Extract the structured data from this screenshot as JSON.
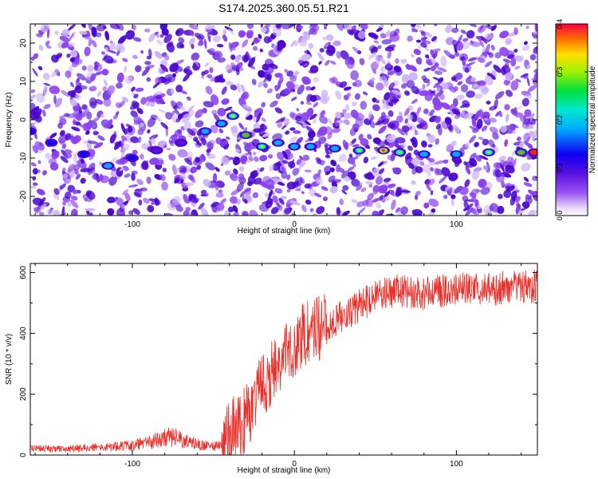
{
  "title": "S174.2025.360.05.51.R21",
  "colors": {
    "axis": "#000000",
    "snr_line": "#e8302a",
    "spectrogram_background": "#ffffff",
    "speckle_dark": "#4a06cf",
    "speckle_mid": "#8a3ff0",
    "speckle_light": "#cdb3f8",
    "signal_core": "#ff2000"
  },
  "chart_data": [
    {
      "type": "heatmap",
      "name": "spectrogram",
      "xlabel": "Height of straight line (km)",
      "ylabel": "Frequency (Hz)",
      "xlim": [
        -163,
        150
      ],
      "ylim": [
        -25,
        25
      ],
      "x_ticks": [
        -100,
        0,
        100
      ],
      "x_tick_labels": [
        "-100",
        "0",
        "100"
      ],
      "y_ticks": [
        -20,
        -10,
        0,
        10,
        20
      ],
      "y_tick_labels": [
        "-20",
        "-10",
        "0",
        "10",
        "20"
      ],
      "signal_trace": {
        "x": [
          -163,
          -150,
          -130,
          -115,
          -100,
          -85,
          -70,
          -55,
          -45,
          -38,
          -30,
          -20,
          -10,
          0,
          10,
          25,
          40,
          55,
          65,
          80,
          100,
          120,
          140,
          148
        ],
        "y": [
          -3,
          -6,
          -9,
          -12,
          -10,
          -8,
          -6,
          -3,
          -1,
          1,
          -4,
          -7,
          -6,
          -7,
          -7,
          -7.5,
          -8,
          -8,
          -8.5,
          -9,
          -9,
          -8.5,
          -8.5,
          -8.5
        ],
        "peak_amplitude": [
          0.12,
          0.1,
          0.12,
          0.15,
          0.1,
          0.08,
          0.08,
          0.15,
          0.18,
          0.22,
          0.25,
          0.2,
          0.15,
          0.15,
          0.15,
          0.18,
          0.2,
          0.3,
          0.22,
          0.18,
          0.18,
          0.2,
          0.25,
          0.4
        ]
      },
      "colorbar": {
        "label": "Normalized spectral amplitude",
        "range": [
          0.0,
          0.4
        ],
        "ticks": [
          0.0,
          0.1,
          0.2,
          0.3,
          0.4
        ],
        "tick_labels": [
          "0.0",
          "0.1",
          "0.2",
          "0.3",
          "0.4"
        ],
        "colormap": "rainbow (white → purple → blue → cyan → green → yellow → red)"
      }
    },
    {
      "type": "line",
      "name": "snr",
      "xlabel": "Height of straight line (km)",
      "ylabel": "SNR (10 * v/v)",
      "xlim": [
        -163,
        150
      ],
      "ylim": [
        0,
        630
      ],
      "x_ticks": [
        -100,
        0,
        100
      ],
      "x_tick_labels": [
        "-100",
        "0",
        "100"
      ],
      "y_ticks": [
        0,
        200,
        400,
        600
      ],
      "y_tick_labels": [
        "0",
        "200",
        "400",
        "600"
      ],
      "series": [
        {
          "name": "SNR",
          "x": [
            -163,
            -140,
            -120,
            -100,
            -90,
            -80,
            -75,
            -70,
            -60,
            -50,
            -45,
            -42,
            -40,
            -35,
            -30,
            -25,
            -20,
            -15,
            -10,
            -5,
            0,
            5,
            10,
            15,
            20,
            25,
            30,
            40,
            50,
            60,
            70,
            80,
            90,
            100,
            110,
            120,
            130,
            140,
            150
          ],
          "y": [
            22,
            20,
            25,
            32,
            42,
            55,
            62,
            50,
            35,
            28,
            32,
            55,
            78,
            90,
            120,
            180,
            230,
            260,
            300,
            330,
            360,
            390,
            410,
            420,
            430,
            440,
            455,
            490,
            520,
            540,
            540,
            530,
            540,
            545,
            545,
            545,
            550,
            555,
            555
          ]
        }
      ]
    }
  ]
}
